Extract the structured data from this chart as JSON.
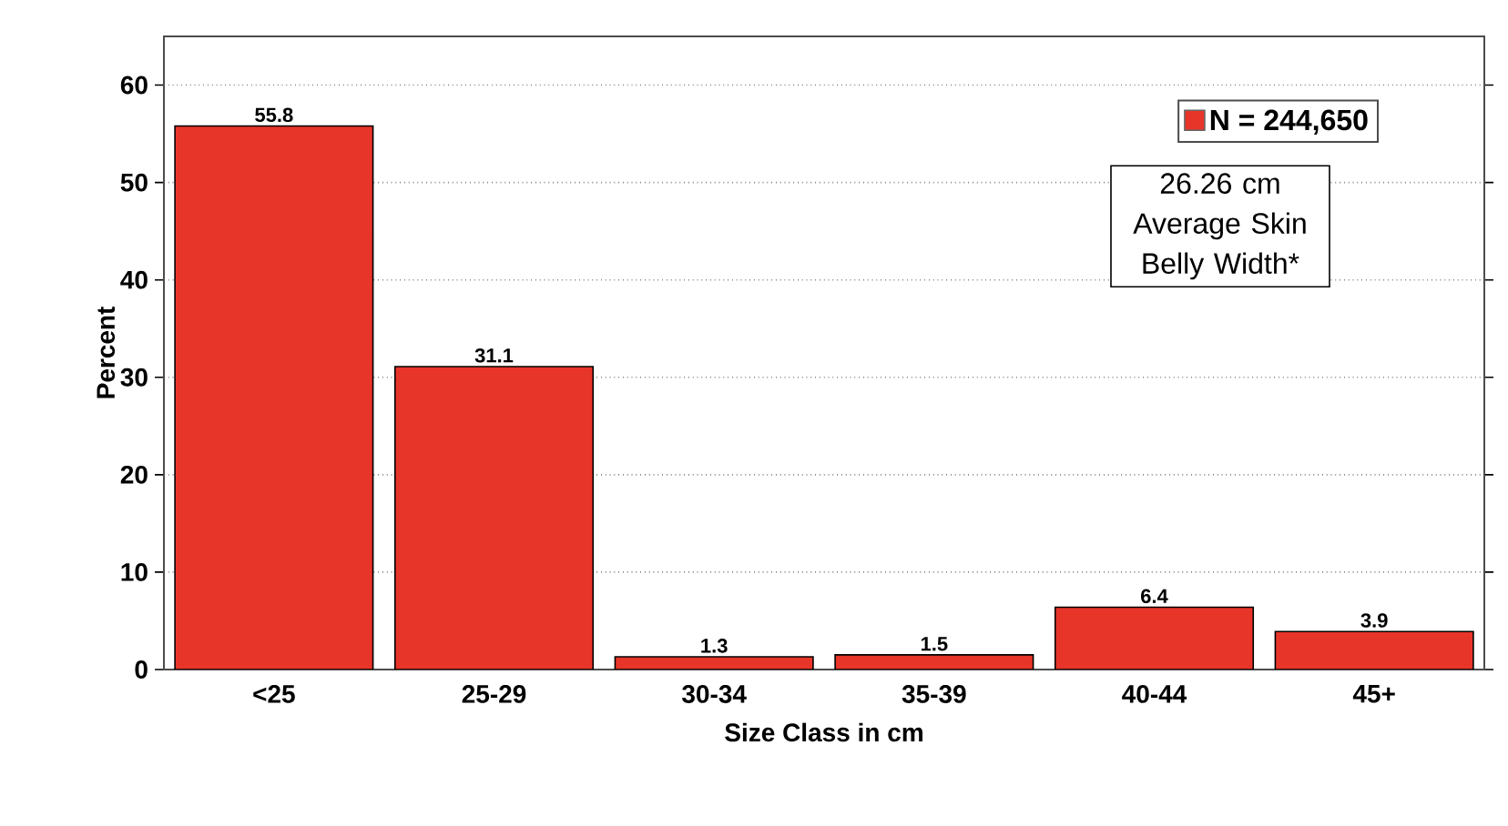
{
  "chart_data": {
    "type": "bar",
    "xlabel": "Size Class in cm",
    "ylabel": "Percent",
    "categories": [
      "<25",
      "25-29",
      "30-34",
      "35-39",
      "40-44",
      "45+"
    ],
    "series": [
      {
        "name": "N = 244,650",
        "color": "#e8352a",
        "values": [
          55.8,
          31.1,
          1.3,
          1.5,
          6.4,
          3.9
        ]
      }
    ],
    "ylim": [
      0,
      65
    ],
    "yticks": [
      0,
      10,
      20,
      30,
      40,
      50,
      60
    ],
    "grid": "y",
    "legend": "top right",
    "data_labels": true,
    "annotations": [
      "26.26 cm Average Skin Belly Width*"
    ]
  }
}
